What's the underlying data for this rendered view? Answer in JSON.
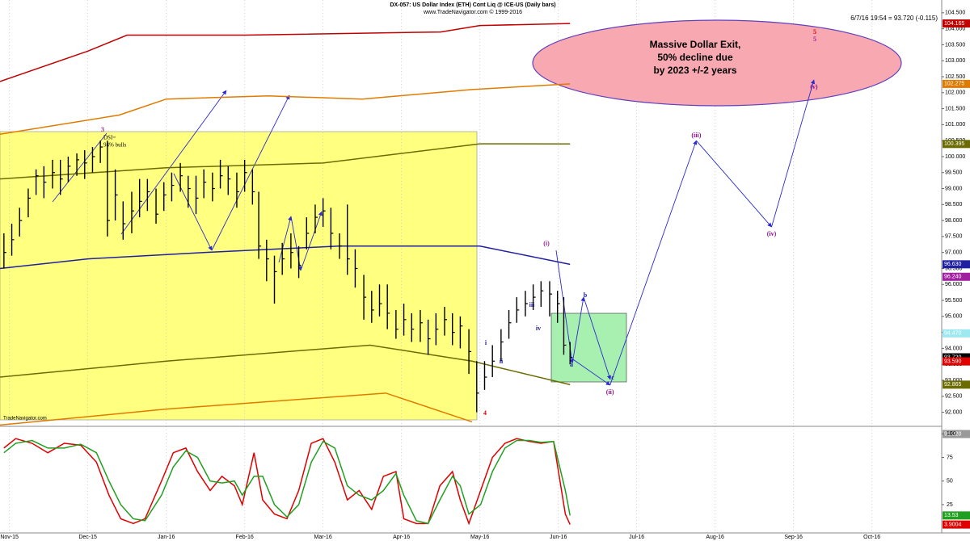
{
  "chart_data": {
    "type": "ohlc",
    "title": "DX-057: US Dollar Index (ETH) Cont Liq @ ICE-US (Daily bars)",
    "subtitle": "www.TradeNavigator.com © 1999-2016",
    "quote": "6/7/16 19:54 = 93.720 (-0.115)",
    "watermark": "TradeNavigator.com",
    "dsi_note": [
      "DSI=",
      "94% bulls"
    ],
    "forecast_note": [
      "Massive Dollar Exit,",
      "50% decline due",
      "by 2023 +/-2 years"
    ],
    "wave_labels": [
      "i",
      "ii",
      "iii",
      "iv",
      "(i)",
      "a",
      "b",
      "c",
      "4",
      "5",
      "5",
      "3"
    ],
    "grid": true,
    "xlim": [
      -0.12,
      11.89
    ],
    "xticks": [
      {
        "value": 0,
        "label": "Nov-15"
      },
      {
        "value": 1,
        "label": "Dec-15"
      },
      {
        "value": 2,
        "label": "Jan-16"
      },
      {
        "value": 3,
        "label": "Feb-16"
      },
      {
        "value": 4,
        "label": "Mar-16"
      },
      {
        "value": 5,
        "label": "Apr-16"
      },
      {
        "value": 6,
        "label": "May-16"
      },
      {
        "value": 7,
        "label": "Jun-16"
      },
      {
        "value": 8,
        "label": "Jul-16"
      },
      {
        "value": 9,
        "label": "Aug-16"
      },
      {
        "value": 10,
        "label": "Sep-16"
      },
      {
        "value": 11,
        "label": "Oct-16"
      }
    ],
    "ylim": [
      91.56,
      104.9
    ],
    "yticks": [
      {
        "value": 104.5,
        "label": "104.500"
      },
      {
        "value": 104,
        "label": "104.000"
      },
      {
        "value": 103.5,
        "label": "103.500"
      },
      {
        "value": 103,
        "label": "103.000"
      },
      {
        "value": 102.5,
        "label": "102.500"
      },
      {
        "value": 102,
        "label": "102.000"
      },
      {
        "value": 101.5,
        "label": "101.500"
      },
      {
        "value": 101,
        "label": "101.000"
      },
      {
        "value": 100.5,
        "label": "100.500"
      },
      {
        "value": 100,
        "label": "100.000"
      },
      {
        "value": 99.5,
        "label": "99.500"
      },
      {
        "value": 99,
        "label": "99.000"
      },
      {
        "value": 98.5,
        "label": "98.500"
      },
      {
        "value": 98,
        "label": "98.000"
      },
      {
        "value": 97.5,
        "label": "97.500"
      },
      {
        "value": 97,
        "label": "97.000"
      },
      {
        "value": 96.5,
        "label": "96.500"
      },
      {
        "value": 96,
        "label": "96.000"
      },
      {
        "value": 95.5,
        "label": "95.500"
      },
      {
        "value": 95,
        "label": "95.000"
      },
      {
        "value": 94.5,
        "label": "94.500"
      },
      {
        "value": 94,
        "label": "94.000"
      },
      {
        "value": 93.5,
        "label": "93.500"
      },
      {
        "value": 93,
        "label": "93.000"
      },
      {
        "value": 92.5,
        "label": "92.500"
      },
      {
        "value": 92,
        "label": "92.000"
      }
    ],
    "bar_color": "#000000",
    "x": [
      -0.07,
      0.03,
      0.13,
      0.24,
      0.34,
      0.44,
      0.55,
      0.65,
      0.75,
      0.86,
      0.96,
      1.06,
      1.16,
      1.25,
      1.35,
      1.45,
      1.56,
      1.66,
      1.76,
      1.87,
      1.97,
      2.07,
      2.18,
      2.28,
      2.38,
      2.48,
      2.59,
      2.69,
      2.79,
      2.9,
      3.0,
      3.1,
      3.18,
      3.28,
      3.38,
      3.48,
      3.59,
      3.69,
      3.79,
      3.9,
      4.0,
      4.1,
      4.21,
      4.31,
      4.41,
      4.52,
      4.62,
      4.72,
      4.82,
      4.93,
      5.03,
      5.13,
      5.24,
      5.34,
      5.44,
      5.55,
      5.65,
      5.75,
      5.86,
      5.96,
      6.06,
      6.16,
      6.27,
      6.37,
      6.47,
      6.58,
      6.68,
      6.78,
      6.89,
      6.99,
      7.07,
      7.15
    ],
    "high": [
      97.6,
      97.9,
      98.4,
      99.0,
      99.6,
      99.7,
      99.9,
      99.9,
      100.0,
      100.1,
      100.2,
      100.3,
      100.5,
      100.5,
      99.6,
      98.6,
      98.9,
      99.3,
      99.3,
      99.0,
      99.2,
      99.5,
      99.8,
      99.4,
      99.4,
      99.6,
      99.5,
      99.9,
      99.7,
      99.5,
      99.9,
      99.6,
      98.9,
      97.4,
      96.9,
      97.3,
      97.6,
      97.2,
      98.1,
      98.5,
      98.7,
      98.4,
      97.6,
      98.5,
      97.1,
      96.3,
      95.8,
      96.0,
      96.0,
      95.2,
      95.4,
      95.1,
      95.2,
      94.9,
      95.1,
      95.3,
      95.1,
      95.0,
      94.6,
      93.6,
      93.6,
      94.1,
      94.6,
      95.2,
      95.6,
      95.8,
      96.0,
      96.1,
      96.1,
      95.8,
      95.6,
      94.2
    ],
    "low": [
      96.5,
      96.9,
      97.5,
      98.1,
      98.8,
      98.7,
      99.0,
      98.8,
      99.2,
      99.4,
      99.3,
      99.5,
      99.8,
      97.5,
      98.0,
      97.4,
      97.6,
      98.1,
      98.3,
      97.9,
      98.3,
      98.6,
      98.9,
      98.4,
      98.2,
      98.7,
      98.6,
      99.0,
      98.8,
      98.4,
      98.9,
      98.5,
      96.8,
      96.1,
      95.4,
      96.3,
      96.5,
      96.2,
      97.1,
      97.6,
      97.8,
      97.1,
      96.8,
      96.3,
      95.9,
      94.9,
      94.8,
      95.0,
      94.6,
      94.3,
      94.4,
      94.2,
      94.2,
      93.8,
      94.1,
      94.4,
      94.1,
      94.0,
      93.2,
      92.0,
      92.7,
      93.1,
      93.6,
      94.3,
      94.8,
      95.0,
      95.2,
      95.3,
      95.0,
      94.8,
      93.8,
      93.5
    ],
    "close": [
      97.0,
      97.4,
      98.0,
      98.7,
      99.4,
      99.2,
      99.5,
      99.3,
      99.7,
      99.9,
      99.8,
      100.0,
      100.3,
      98.0,
      98.8,
      97.9,
      98.3,
      98.6,
      98.9,
      98.2,
      98.8,
      99.1,
      99.4,
      99.0,
      98.7,
      99.2,
      99.0,
      99.4,
      99.3,
      98.9,
      99.5,
      98.9,
      97.2,
      96.8,
      96.4,
      96.8,
      97.0,
      96.6,
      97.6,
      98.1,
      98.3,
      97.6,
      97.2,
      96.8,
      96.5,
      95.6,
      95.2,
      95.4,
      95.1,
      94.6,
      94.9,
      94.6,
      94.8,
      94.3,
      94.6,
      94.9,
      94.5,
      94.7,
      93.9,
      92.6,
      93.1,
      93.6,
      94.2,
      94.8,
      95.2,
      95.4,
      95.6,
      95.8,
      95.7,
      95.4,
      94.1,
      93.72
    ],
    "overlays": [
      {
        "color": "#c00000",
        "x": [
          -0.12,
          1.0,
          1.5,
          3.0,
          5.5,
          6.0,
          7.15
        ],
        "values": [
          102.35,
          103.3,
          103.8,
          103.8,
          103.9,
          104.1,
          104.165
        ]
      },
      {
        "color": "#e07b00",
        "x": [
          -0.12,
          1.4,
          2.0,
          3.3,
          4.5,
          5.9,
          7.15
        ],
        "values": [
          100.7,
          101.3,
          101.8,
          101.9,
          101.8,
          102.1,
          102.275
        ]
      },
      {
        "color": "#6b6b00",
        "x": [
          -0.12,
          2.0,
          4.0,
          6.0,
          7.15
        ],
        "values": [
          99.3,
          99.65,
          99.8,
          100.4,
          100.395
        ]
      },
      {
        "color": "#2020a0",
        "x": [
          -0.12,
          1.0,
          2.5,
          4.2,
          6.0,
          7.15
        ],
        "values": [
          96.5,
          96.8,
          97.0,
          97.2,
          97.2,
          96.63
        ]
      },
      {
        "color": "#6b6b00",
        "x": [
          -0.12,
          2.0,
          4.6,
          5.9,
          7.15
        ],
        "values": [
          93.1,
          93.6,
          94.1,
          93.6,
          92.865
        ]
      },
      {
        "color": "#e07b00",
        "x": [
          -0.12,
          2.0,
          4.8,
          5.9
        ],
        "values": [
          91.6,
          92.1,
          92.6,
          91.7
        ]
      }
    ],
    "forecast": {
      "color": "#2a2ad0",
      "x": [
        7.15,
        7.66,
        8.76,
        9.72,
        10.26
      ],
      "values": [
        93.72,
        92.85,
        100.5,
        97.8,
        102.4
      ],
      "labels": [
        null,
        "(ii)",
        "(iii)",
        "(iv)",
        "(v)"
      ]
    },
    "price_tags": [
      {
        "value": 104.165,
        "color": "#c00000"
      },
      {
        "value": 102.275,
        "color": "#e07b00"
      },
      {
        "value": 100.395,
        "color": "#6b6b00"
      },
      {
        "value": 96.63,
        "label": "96.630",
        "color": "#2020a0"
      },
      {
        "value": 96.24,
        "label": "96.240",
        "color": "#a020a0"
      },
      {
        "value": 94.47,
        "label": "94.470",
        "color": "#9ee8f0"
      },
      {
        "value": 93.72,
        "label": "93.720",
        "color": "#000000"
      },
      {
        "value": 93.59,
        "label": "93.590",
        "color": "#e00000"
      },
      {
        "value": 92.865,
        "color": "#6b6b00"
      },
      {
        "value": 91.32,
        "label": "91.320",
        "color": "#999999"
      }
    ],
    "oscillator": {
      "ylim": [
        -5,
        108
      ],
      "yticks": [
        100,
        75,
        50,
        25
      ],
      "x": [
        -0.07,
        0.08,
        0.29,
        0.49,
        0.7,
        0.91,
        1.11,
        1.27,
        1.42,
        1.58,
        1.73,
        1.94,
        2.09,
        2.25,
        2.4,
        2.56,
        2.71,
        2.87,
        2.97,
        3.12,
        3.23,
        3.38,
        3.54,
        3.69,
        3.85,
        4.0,
        4.15,
        4.31,
        4.46,
        4.62,
        4.77,
        4.93,
        5.03,
        5.19,
        5.34,
        5.49,
        5.65,
        5.75,
        5.86,
        6.01,
        6.16,
        6.32,
        6.47,
        6.63,
        6.78,
        6.94,
        7.09,
        7.15
      ],
      "series": [
        {
          "color": "#e00000",
          "values": [
            85,
            95,
            90,
            80,
            90,
            88,
            70,
            35,
            10,
            5,
            10,
            50,
            80,
            85,
            60,
            40,
            55,
            45,
            25,
            80,
            30,
            15,
            10,
            40,
            90,
            95,
            70,
            30,
            40,
            20,
            55,
            60,
            10,
            5,
            5,
            45,
            60,
            30,
            5,
            40,
            75,
            90,
            95,
            92,
            90,
            92,
            15,
            3.9004
          ]
        },
        {
          "color": "#20a020",
          "values": [
            80,
            90,
            93,
            85,
            85,
            89,
            80,
            50,
            25,
            10,
            8,
            35,
            65,
            82,
            75,
            50,
            48,
            50,
            35,
            55,
            55,
            25,
            12,
            25,
            70,
            92,
            85,
            45,
            35,
            30,
            40,
            58,
            35,
            8,
            5,
            30,
            55,
            45,
            15,
            25,
            60,
            85,
            93,
            93,
            91,
            92,
            40,
            13.53
          ]
        }
      ]
    }
  }
}
